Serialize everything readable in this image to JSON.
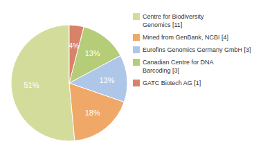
{
  "chart_data": {
    "type": "pie",
    "categories": [
      "Centre for Biodiversity\nGenomics [11]",
      "Mined from GenBank, NCBI [4]",
      "Eurofins Genomics Germany GmbH [3]",
      "Canadian Centre for DNA\nBarcoding [3]",
      "GATC Biotech AG [1]"
    ],
    "values": [
      51,
      18,
      13,
      13,
      4
    ],
    "value_labels": [
      "51%",
      "18%",
      "13%",
      "13%",
      "4%"
    ],
    "colors": [
      "#d4dc9b",
      "#f0a868",
      "#aec6e8",
      "#b5cc78",
      "#d9826a"
    ],
    "data_labels": true,
    "legend": "right"
  }
}
